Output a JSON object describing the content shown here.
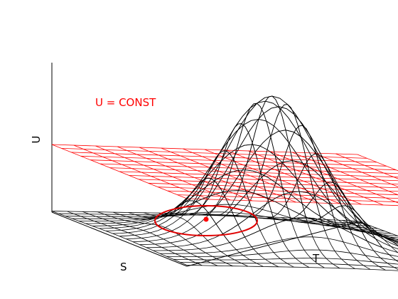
{
  "labels": {
    "plane": "U = CONST",
    "u_axis": "U",
    "s_axis": "S",
    "t_axis": "T"
  },
  "colors": {
    "surface": "#000000",
    "plane": "#ff0000",
    "contour": "#e00000",
    "center_point": "#ff0000",
    "axes": "#000000"
  },
  "surface": {
    "function": "gaussian",
    "grid_lines": 21
  },
  "plane_grid_lines": 14
}
